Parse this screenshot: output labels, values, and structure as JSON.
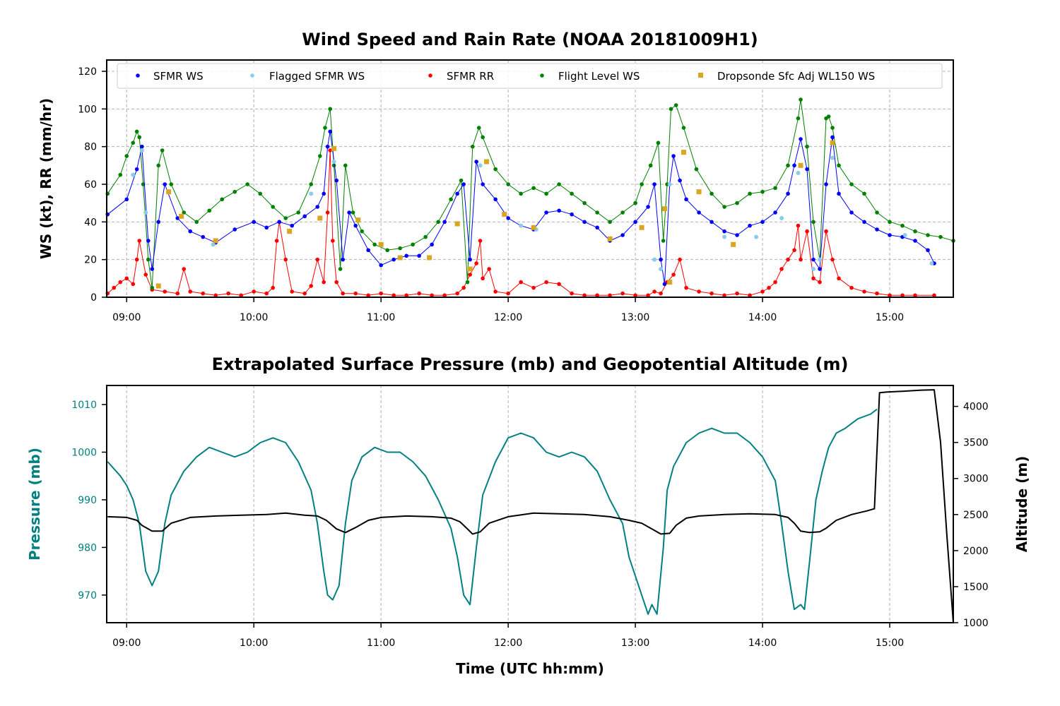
{
  "chart_data": [
    {
      "type": "scatter",
      "title": "Wind Speed and Rain Rate (NOAA 20181009H1)",
      "xlabel": "",
      "ylabel": "WS (kt), RR (mm/hr)",
      "x_ticks": [
        "09:00",
        "10:00",
        "11:00",
        "12:00",
        "13:00",
        "14:00",
        "15:00"
      ],
      "y_ticks": [
        "0",
        "20",
        "40",
        "60",
        "80",
        "100",
        "120"
      ],
      "xlim": [
        8.843,
        15.5
      ],
      "ylim": [
        0,
        126
      ],
      "grid": true,
      "legend_position": "top",
      "colors": {
        "sfmr": "#0000ff",
        "flagged": "#87ceeb",
        "rr": "#ff0000",
        "flight": "#008000",
        "drop": "#daa520"
      },
      "series": [
        {
          "name": "SFMR WS",
          "color": "#0000ff",
          "x": [
            8.85,
            9.0,
            9.08,
            9.12,
            9.17,
            9.2,
            9.25,
            9.3,
            9.4,
            9.5,
            9.6,
            9.7,
            9.85,
            10.0,
            10.1,
            10.2,
            10.3,
            10.4,
            10.5,
            10.55,
            10.58,
            10.6,
            10.65,
            10.7,
            10.75,
            10.8,
            10.9,
            11.0,
            11.1,
            11.2,
            11.3,
            11.4,
            11.5,
            11.6,
            11.65,
            11.7,
            11.75,
            11.8,
            11.9,
            12.0,
            12.1,
            12.2,
            12.3,
            12.4,
            12.5,
            12.6,
            12.7,
            12.8,
            12.9,
            13.0,
            13.1,
            13.15,
            13.2,
            13.23,
            13.27,
            13.3,
            13.35,
            13.4,
            13.5,
            13.6,
            13.7,
            13.8,
            13.9,
            14.0,
            14.1,
            14.2,
            14.25,
            14.3,
            14.35,
            14.4,
            14.45,
            14.5,
            14.55,
            14.6,
            14.7,
            14.8,
            14.9,
            15.0,
            15.1,
            15.2,
            15.3,
            15.35
          ],
          "y": [
            44,
            52,
            68,
            80,
            30,
            15,
            40,
            60,
            42,
            35,
            32,
            29,
            36,
            40,
            37,
            40,
            38,
            43,
            48,
            55,
            80,
            88,
            62,
            20,
            45,
            38,
            25,
            17,
            20,
            22,
            22,
            28,
            40,
            55,
            60,
            20,
            72,
            60,
            52,
            42,
            38,
            36,
            45,
            46,
            44,
            40,
            37,
            30,
            33,
            40,
            48,
            60,
            20,
            7,
            60,
            75,
            62,
            52,
            45,
            40,
            35,
            33,
            38,
            40,
            45,
            55,
            70,
            84,
            68,
            20,
            15,
            60,
            85,
            55,
            45,
            40,
            36,
            33,
            32,
            30,
            25,
            18
          ]
        },
        {
          "name": "Flagged SFMR WS",
          "color": "#87ceeb",
          "x": [
            9.05,
            9.12,
            9.15,
            9.68,
            10.45,
            10.63,
            11.78,
            12.1,
            12.22,
            13.15,
            13.2,
            13.27,
            13.7,
            13.95,
            14.15,
            14.28,
            14.4,
            14.45,
            14.55,
            15.12,
            15.33
          ],
          "y": [
            65,
            78,
            45,
            28,
            55,
            72,
            70,
            38,
            36,
            20,
            15,
            60,
            32,
            32,
            42,
            66,
            15,
            20,
            74,
            33,
            18
          ]
        },
        {
          "name": "SFMR RR",
          "color": "#ff0000",
          "x": [
            8.85,
            8.9,
            8.95,
            9.0,
            9.05,
            9.08,
            9.1,
            9.15,
            9.2,
            9.3,
            9.4,
            9.45,
            9.5,
            9.6,
            9.7,
            9.8,
            9.9,
            10.0,
            10.1,
            10.15,
            10.18,
            10.2,
            10.25,
            10.3,
            10.4,
            10.45,
            10.5,
            10.55,
            10.58,
            10.6,
            10.62,
            10.65,
            10.7,
            10.8,
            10.9,
            11.0,
            11.1,
            11.2,
            11.3,
            11.4,
            11.5,
            11.6,
            11.65,
            11.7,
            11.75,
            11.78,
            11.8,
            11.85,
            11.9,
            12.0,
            12.1,
            12.2,
            12.3,
            12.4,
            12.5,
            12.6,
            12.7,
            12.8,
            12.9,
            13.0,
            13.1,
            13.15,
            13.2,
            13.25,
            13.3,
            13.35,
            13.4,
            13.5,
            13.6,
            13.7,
            13.8,
            13.9,
            14.0,
            14.05,
            14.1,
            14.15,
            14.2,
            14.25,
            14.28,
            14.3,
            14.35,
            14.4,
            14.45,
            14.5,
            14.55,
            14.6,
            14.7,
            14.8,
            14.9,
            15.0,
            15.1,
            15.2,
            15.35
          ],
          "y": [
            2,
            5,
            8,
            10,
            7,
            20,
            30,
            12,
            4,
            3,
            2,
            15,
            3,
            2,
            1,
            2,
            1,
            3,
            2,
            5,
            30,
            40,
            20,
            3,
            2,
            6,
            20,
            8,
            45,
            78,
            30,
            8,
            2,
            2,
            1,
            2,
            1,
            1,
            2,
            1,
            1,
            2,
            5,
            12,
            18,
            30,
            10,
            15,
            3,
            2,
            8,
            5,
            8,
            7,
            2,
            1,
            1,
            1,
            2,
            1,
            1,
            3,
            2,
            8,
            12,
            20,
            5,
            3,
            2,
            1,
            2,
            1,
            3,
            5,
            8,
            15,
            20,
            25,
            38,
            20,
            35,
            10,
            8,
            35,
            20,
            10,
            5,
            3,
            2,
            1,
            1,
            1,
            1
          ]
        },
        {
          "name": "Flight Level WS",
          "color": "#008000",
          "x": [
            8.85,
            8.95,
            9.0,
            9.05,
            9.08,
            9.1,
            9.13,
            9.17,
            9.2,
            9.25,
            9.28,
            9.35,
            9.45,
            9.55,
            9.65,
            9.75,
            9.85,
            9.95,
            10.05,
            10.15,
            10.25,
            10.35,
            10.45,
            10.52,
            10.56,
            10.6,
            10.63,
            10.68,
            10.72,
            10.78,
            10.85,
            10.95,
            11.05,
            11.15,
            11.25,
            11.35,
            11.45,
            11.55,
            11.63,
            11.68,
            11.72,
            11.77,
            11.8,
            11.9,
            12.0,
            12.1,
            12.2,
            12.3,
            12.4,
            12.5,
            12.6,
            12.7,
            12.8,
            12.9,
            13.0,
            13.05,
            13.12,
            13.18,
            13.22,
            13.25,
            13.28,
            13.32,
            13.38,
            13.48,
            13.6,
            13.7,
            13.8,
            13.9,
            14.0,
            14.1,
            14.2,
            14.28,
            14.3,
            14.35,
            14.4,
            14.45,
            14.5,
            14.52,
            14.55,
            14.6,
            14.7,
            14.8,
            14.9,
            15.0,
            15.1,
            15.2,
            15.3,
            15.4,
            15.5
          ],
          "y": [
            55,
            65,
            75,
            82,
            88,
            85,
            60,
            20,
            5,
            70,
            78,
            60,
            45,
            40,
            46,
            52,
            56,
            60,
            55,
            48,
            42,
            45,
            60,
            75,
            90,
            100,
            70,
            15,
            70,
            45,
            35,
            28,
            25,
            26,
            28,
            32,
            40,
            52,
            62,
            8,
            80,
            90,
            85,
            68,
            60,
            55,
            58,
            55,
            60,
            55,
            50,
            45,
            40,
            45,
            50,
            60,
            70,
            82,
            30,
            60,
            100,
            102,
            90,
            68,
            55,
            48,
            50,
            55,
            56,
            58,
            70,
            95,
            105,
            80,
            40,
            20,
            95,
            96,
            90,
            70,
            60,
            55,
            45,
            40,
            38,
            35,
            33,
            32,
            30
          ]
        },
        {
          "name": "Dropsonde Sfc Adj WL150 WS",
          "color": "#daa520",
          "x": [
            9.25,
            9.33,
            9.43,
            9.7,
            10.28,
            10.52,
            10.63,
            10.82,
            11.0,
            11.15,
            11.38,
            11.6,
            11.7,
            11.83,
            11.97,
            12.2,
            12.8,
            13.05,
            13.23,
            13.27,
            13.38,
            13.5,
            13.77,
            14.3,
            14.55
          ],
          "y": [
            6,
            56,
            43,
            30,
            35,
            42,
            79,
            41,
            28,
            21,
            21,
            39,
            15,
            72,
            44,
            37,
            31,
            37,
            47,
            8,
            77,
            56,
            28,
            70,
            82
          ]
        }
      ]
    },
    {
      "type": "line",
      "title": "Extrapolated Surface Pressure (mb) and Geopotential Altitude (m)",
      "xlabel": "Time (UTC hh:mm)",
      "ylabel": "Pressure (mb)",
      "ylabel_right": "Altitude (m)",
      "x_ticks": [
        "09:00",
        "10:00",
        "11:00",
        "12:00",
        "13:00",
        "14:00",
        "15:00"
      ],
      "y_ticks": [
        "970",
        "980",
        "990",
        "1000",
        "1010"
      ],
      "y_ticks_right": [
        "1000",
        "1500",
        "2000",
        "2500",
        "3000",
        "3500",
        "4000"
      ],
      "xlim": [
        8.843,
        15.5
      ],
      "ylim": [
        964.2,
        1014
      ],
      "ylim_right": [
        1000,
        4290
      ],
      "grid": true,
      "colors": {
        "pressure": "#008080",
        "altitude": "#000000"
      },
      "series": [
        {
          "name": "Pressure",
          "color": "#008080",
          "x": [
            8.85,
            8.95,
            9.0,
            9.05,
            9.1,
            9.15,
            9.2,
            9.25,
            9.3,
            9.35,
            9.45,
            9.55,
            9.65,
            9.75,
            9.85,
            9.95,
            10.05,
            10.15,
            10.25,
            10.35,
            10.45,
            10.5,
            10.55,
            10.58,
            10.62,
            10.67,
            10.72,
            10.77,
            10.85,
            10.95,
            11.05,
            11.15,
            11.25,
            11.35,
            11.45,
            11.55,
            11.6,
            11.65,
            11.7,
            11.75,
            11.8,
            11.9,
            12.0,
            12.1,
            12.2,
            12.3,
            12.4,
            12.5,
            12.6,
            12.7,
            12.8,
            12.9,
            12.95,
            13.05,
            13.1,
            13.13,
            13.17,
            13.22,
            13.25,
            13.3,
            13.4,
            13.5,
            13.6,
            13.7,
            13.8,
            13.9,
            14.0,
            14.1,
            14.15,
            14.2,
            14.25,
            14.3,
            14.33,
            14.37,
            14.42,
            14.47,
            14.52,
            14.58,
            14.65,
            14.75,
            14.85,
            14.9
          ],
          "y": [
            998,
            995,
            993,
            990,
            985,
            975,
            972,
            975,
            985,
            991,
            996,
            999,
            1001,
            1000,
            999,
            1000,
            1002,
            1003,
            1002,
            998,
            992,
            985,
            975,
            970,
            969,
            972,
            985,
            994,
            999,
            1001,
            1000,
            1000,
            998,
            995,
            990,
            984,
            978,
            970,
            968,
            980,
            991,
            998,
            1003,
            1004,
            1003,
            1000,
            999,
            1000,
            999,
            996,
            990,
            985,
            978,
            970,
            966,
            968,
            966,
            980,
            992,
            997,
            1002,
            1004,
            1005,
            1004,
            1004,
            1002,
            999,
            994,
            985,
            975,
            967,
            968,
            967,
            977,
            990,
            996,
            1001,
            1004,
            1005,
            1007,
            1008,
            1009
          ]
        },
        {
          "name": "Altitude",
          "color": "#000000",
          "x": [
            8.85,
            9.0,
            9.08,
            9.12,
            9.2,
            9.28,
            9.35,
            9.5,
            9.7,
            9.9,
            10.1,
            10.25,
            10.4,
            10.5,
            10.57,
            10.65,
            10.72,
            10.8,
            10.9,
            11.0,
            11.2,
            11.4,
            11.55,
            11.62,
            11.68,
            11.72,
            11.78,
            11.85,
            12.0,
            12.2,
            12.4,
            12.6,
            12.8,
            12.95,
            13.05,
            13.15,
            13.2,
            13.27,
            13.32,
            13.4,
            13.5,
            13.7,
            13.9,
            14.1,
            14.2,
            14.25,
            14.3,
            14.37,
            14.45,
            14.5,
            14.58,
            14.7,
            14.82,
            14.88,
            14.92,
            14.98,
            15.1,
            15.2,
            15.25,
            15.35,
            15.4,
            15.45,
            15.5
          ],
          "y": [
            2470,
            2460,
            2420,
            2350,
            2270,
            2270,
            2380,
            2460,
            2480,
            2490,
            2500,
            2520,
            2490,
            2480,
            2420,
            2300,
            2250,
            2320,
            2420,
            2460,
            2480,
            2470,
            2450,
            2400,
            2300,
            2230,
            2260,
            2380,
            2470,
            2520,
            2510,
            2500,
            2470,
            2420,
            2380,
            2280,
            2230,
            2240,
            2350,
            2450,
            2480,
            2500,
            2510,
            2500,
            2460,
            2380,
            2270,
            2250,
            2260,
            2310,
            2420,
            2500,
            2550,
            2580,
            4190,
            4200,
            4210,
            4220,
            4225,
            4230,
            3500,
            2200,
            1000
          ]
        }
      ]
    }
  ]
}
